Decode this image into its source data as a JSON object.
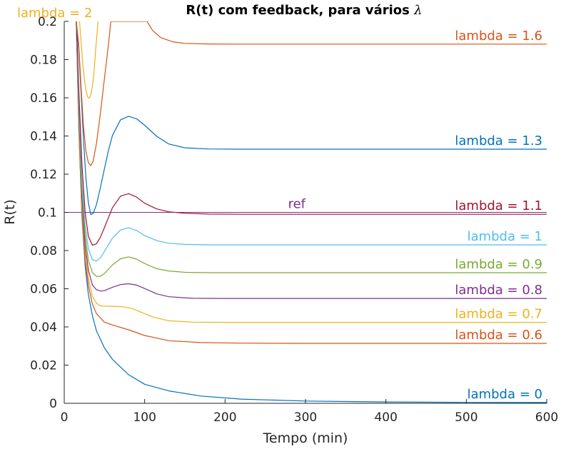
{
  "chart_data": {
    "type": "line",
    "title_text": "R(t) com feedback, para vários ",
    "title_symbol": "λ",
    "xlabel": "Tempo (min)",
    "ylabel": "R(t)",
    "xlim": [
      0,
      600
    ],
    "ylim": [
      0,
      0.2
    ],
    "xticks": [
      0,
      100,
      200,
      300,
      400,
      500,
      600
    ],
    "yticks": [
      0,
      0.02,
      0.04,
      0.06,
      0.08,
      0.1,
      0.12,
      0.14,
      0.16,
      0.18,
      0.2
    ],
    "xtick_labels": [
      "0",
      "100",
      "200",
      "300",
      "400",
      "500",
      "600"
    ],
    "ytick_labels": [
      "0",
      "0.02",
      "0.04",
      "0.06",
      "0.08",
      "0.1",
      "0.12",
      "0.14",
      "0.16",
      "0.18",
      "0.2"
    ],
    "grid": false,
    "reference": {
      "name": "ref",
      "value": 0.1,
      "color": "#7E2F8E"
    },
    "series": [
      {
        "name": "lambda = 0",
        "color": "#0072BD",
        "x": [
          15,
          18,
          22,
          26,
          30,
          35,
          40,
          50,
          60,
          80,
          100,
          130,
          170,
          220,
          300,
          400,
          500,
          600
        ],
        "y": [
          0.2,
          0.145,
          0.098,
          0.072,
          0.057,
          0.046,
          0.038,
          0.029,
          0.023,
          0.015,
          0.01,
          0.0065,
          0.0038,
          0.0022,
          0.0012,
          0.0007,
          0.0005,
          0.0004
        ]
      },
      {
        "name": "lambda = 0.6",
        "color": "#D95319",
        "x": [
          15,
          18,
          22,
          26,
          30,
          35,
          40,
          50,
          60,
          80,
          100,
          130,
          170,
          220,
          300,
          400,
          600
        ],
        "y": [
          0.2,
          0.145,
          0.1,
          0.075,
          0.062,
          0.052,
          0.047,
          0.0425,
          0.041,
          0.0385,
          0.0355,
          0.0328,
          0.0318,
          0.0315,
          0.0314,
          0.0314,
          0.0314
        ]
      },
      {
        "name": "lambda = 0.7",
        "color": "#EDB120",
        "x": [
          15,
          18,
          22,
          26,
          30,
          35,
          40,
          45,
          55,
          65,
          75,
          85,
          95,
          110,
          130,
          160,
          200,
          300,
          400,
          600
        ],
        "y": [
          0.2,
          0.148,
          0.104,
          0.08,
          0.066,
          0.056,
          0.0525,
          0.051,
          0.0508,
          0.0508,
          0.0504,
          0.0496,
          0.0478,
          0.0452,
          0.0432,
          0.0425,
          0.0424,
          0.0424,
          0.0424,
          0.0424
        ]
      },
      {
        "name": "lambda = 0.8",
        "color": "#7E2F8E",
        "x": [
          15,
          18,
          22,
          26,
          30,
          35,
          40,
          45,
          50,
          60,
          70,
          80,
          90,
          100,
          115,
          130,
          160,
          200,
          300,
          400,
          600
        ],
        "y": [
          0.2,
          0.152,
          0.108,
          0.083,
          0.07,
          0.062,
          0.0595,
          0.0588,
          0.059,
          0.0608,
          0.0622,
          0.0626,
          0.0619,
          0.0601,
          0.0573,
          0.0558,
          0.055,
          0.0549,
          0.0549,
          0.0549,
          0.0549
        ]
      },
      {
        "name": "lambda = 0.9",
        "color": "#77AC30",
        "x": [
          15,
          18,
          22,
          26,
          30,
          35,
          40,
          45,
          50,
          60,
          70,
          80,
          90,
          100,
          115,
          130,
          150,
          180,
          220,
          300,
          400,
          600
        ],
        "y": [
          0.2,
          0.155,
          0.112,
          0.088,
          0.075,
          0.0685,
          0.0665,
          0.0665,
          0.068,
          0.0725,
          0.0757,
          0.0767,
          0.0755,
          0.0732,
          0.0705,
          0.0693,
          0.0686,
          0.0684,
          0.0684,
          0.0684,
          0.0684,
          0.0684
        ]
      },
      {
        "name": "lambda = 1",
        "color": "#4DBEEE",
        "x": [
          15,
          18,
          22,
          26,
          30,
          35,
          40,
          45,
          50,
          60,
          70,
          80,
          90,
          100,
          115,
          130,
          150,
          180,
          220,
          300,
          400,
          600
        ],
        "y": [
          0.2,
          0.158,
          0.117,
          0.093,
          0.081,
          0.0752,
          0.0745,
          0.0762,
          0.0795,
          0.0865,
          0.0908,
          0.092,
          0.0905,
          0.0878,
          0.0852,
          0.0838,
          0.0832,
          0.083,
          0.083,
          0.083,
          0.083,
          0.083
        ]
      },
      {
        "name": "lambda = 1.1",
        "color": "#A2142F",
        "x": [
          15,
          18,
          22,
          26,
          30,
          35,
          40,
          45,
          50,
          60,
          70,
          80,
          90,
          100,
          115,
          130,
          150,
          180,
          220,
          300,
          400,
          600
        ],
        "y": [
          0.2,
          0.165,
          0.125,
          0.1,
          0.0875,
          0.0828,
          0.0835,
          0.087,
          0.092,
          0.1025,
          0.1085,
          0.1098,
          0.108,
          0.1048,
          0.1018,
          0.1003,
          0.0995,
          0.0991,
          0.099,
          0.099,
          0.099,
          0.099
        ]
      },
      {
        "name": "lambda = 1.3",
        "color": "#0072BD",
        "x": [
          15,
          18,
          21,
          24,
          27,
          30,
          33,
          36,
          40,
          45,
          50,
          55,
          60,
          70,
          80,
          90,
          100,
          115,
          130,
          150,
          180,
          220,
          300,
          400,
          600
        ],
        "y": [
          0.2,
          0.185,
          0.162,
          0.138,
          0.118,
          0.105,
          0.0988,
          0.0995,
          0.104,
          0.113,
          0.1228,
          0.1325,
          0.1403,
          0.1485,
          0.1503,
          0.149,
          0.1456,
          0.1398,
          0.1358,
          0.1338,
          0.1332,
          0.1331,
          0.1331,
          0.1331,
          0.1331
        ]
      },
      {
        "name": "lambda = 1.6",
        "color": "#D95319",
        "x": [
          15,
          18,
          21,
          24,
          27,
          30,
          33,
          36,
          40,
          45,
          50,
          55,
          58,
          103,
          110,
          120,
          135,
          150,
          180,
          220,
          300,
          400,
          600
        ],
        "y": [
          0.2,
          0.188,
          0.165,
          0.145,
          0.132,
          0.126,
          0.1245,
          0.127,
          0.136,
          0.152,
          0.17,
          0.188,
          0.2,
          0.2,
          0.1952,
          0.1915,
          0.1893,
          0.1885,
          0.1882,
          0.1881,
          0.1881,
          0.1881,
          0.1881
        ]
      },
      {
        "name": "lambda = 2",
        "color": "#EDB120",
        "x": [
          19,
          21,
          23,
          25,
          27,
          29,
          31,
          33,
          35,
          37,
          39,
          42
        ],
        "y": [
          0.2,
          0.189,
          0.178,
          0.17,
          0.164,
          0.1605,
          0.1598,
          0.1615,
          0.1658,
          0.1735,
          0.1845,
          0.2
        ]
      }
    ],
    "labels": [
      {
        "text": "lambda = 1.6",
        "color": "#D95319",
        "x": 600,
        "y": 0.1881,
        "anchor": "end"
      },
      {
        "text": "lambda = 1.3",
        "color": "#0072BD",
        "x": 600,
        "y": 0.1331,
        "anchor": "end"
      },
      {
        "text": "lambda = 1.1",
        "color": "#A2142F",
        "x": 600,
        "y": 0.099,
        "anchor": "end"
      },
      {
        "text": "lambda = 1",
        "color": "#4DBEEE",
        "x": 600,
        "y": 0.083,
        "anchor": "end"
      },
      {
        "text": "lambda = 0.9",
        "color": "#77AC30",
        "x": 600,
        "y": 0.0684,
        "anchor": "end"
      },
      {
        "text": "lambda = 0.8",
        "color": "#7E2F8E",
        "x": 600,
        "y": 0.0549,
        "anchor": "end"
      },
      {
        "text": "lambda = 0.7",
        "color": "#EDB120",
        "x": 600,
        "y": 0.0424,
        "anchor": "end"
      },
      {
        "text": "lambda = 0.6",
        "color": "#D95319",
        "x": 600,
        "y": 0.0314,
        "anchor": "end"
      },
      {
        "text": "lambda = 0",
        "color": "#0072BD",
        "x": 600,
        "y": 0.0004,
        "anchor": "end"
      },
      {
        "text": "ref",
        "color": "#7E2F8E",
        "x": 300,
        "y": 0.1,
        "anchor": "end"
      },
      {
        "text": "lambda = 2",
        "color": "#EDB120",
        "x": 35,
        "y": 0.2,
        "anchor": "end"
      }
    ]
  }
}
